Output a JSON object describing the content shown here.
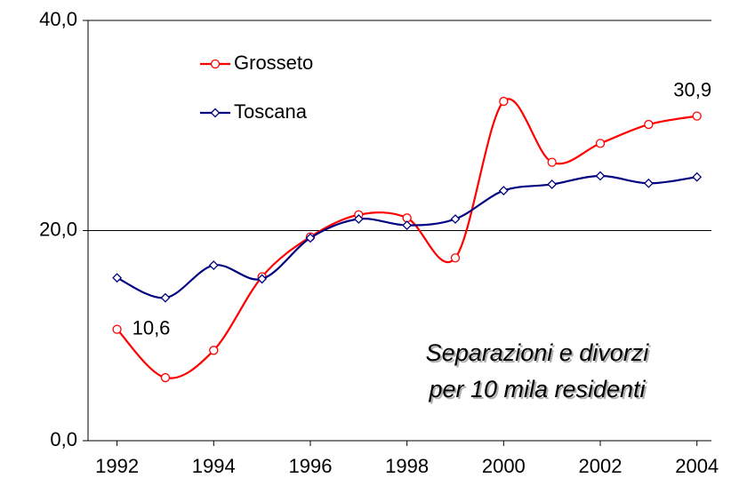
{
  "chart_data": {
    "type": "line",
    "x": [
      1992,
      1993,
      1994,
      1995,
      1996,
      1997,
      1998,
      1999,
      2000,
      2001,
      2002,
      2003,
      2004
    ],
    "series": [
      {
        "name": "Grosseto",
        "color": "#ff0000",
        "marker": "circle",
        "values": [
          10.6,
          6.0,
          8.6,
          15.6,
          19.4,
          21.5,
          21.2,
          17.4,
          32.3,
          26.5,
          28.3,
          30.1,
          30.9
        ],
        "value_labels": [
          "10,6",
          null,
          null,
          null,
          null,
          null,
          null,
          null,
          null,
          null,
          null,
          null,
          "30,9"
        ]
      },
      {
        "name": "Toscana",
        "color": "#000080",
        "marker": "diamond",
        "values": [
          15.5,
          13.6,
          16.7,
          15.4,
          19.3,
          21.1,
          20.5,
          21.1,
          23.8,
          24.4,
          25.2,
          24.5,
          25.1
        ]
      }
    ],
    "annotations": [
      "Separazioni e divorzi",
      "per 10 mila residenti"
    ],
    "xlim": [
      1991.4,
      2004.3
    ],
    "xticks": [
      1992,
      1994,
      1996,
      1998,
      2000,
      2002,
      2004
    ],
    "ylim": [
      0,
      40
    ],
    "yticks": [
      {
        "value": 0,
        "label": "0,0"
      },
      {
        "value": 20,
        "label": "20,0"
      },
      {
        "value": 40,
        "label": "40,0"
      }
    ],
    "grid": true,
    "legend": "top-left",
    "smooth": true
  }
}
